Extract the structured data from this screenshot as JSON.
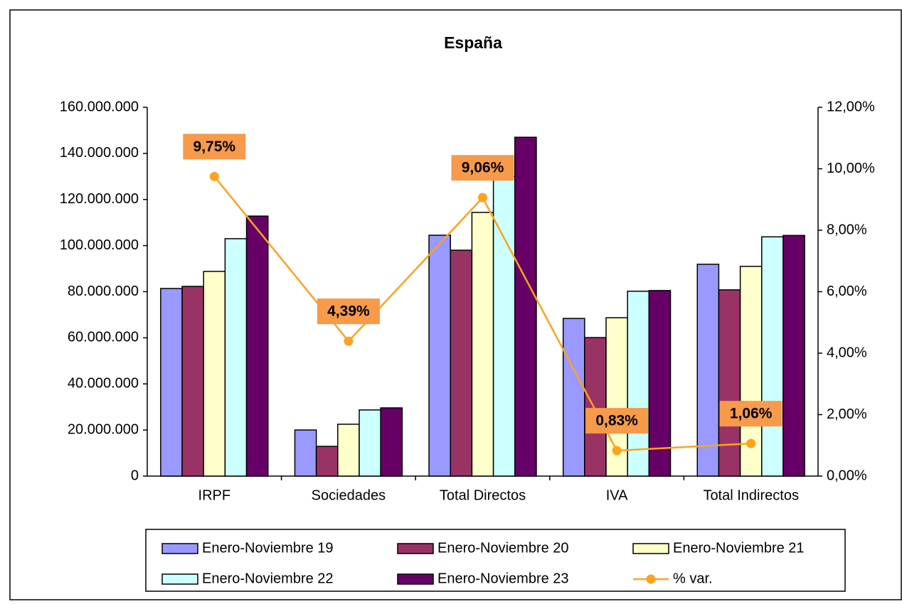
{
  "chart_data": {
    "type": "bar",
    "title": "España",
    "categories": [
      "IRPF",
      "Sociedades",
      "Total Directos",
      "IVA",
      "Total Indirectos"
    ],
    "series": [
      {
        "name": "Enero-Noviembre 19",
        "color": "#9999ff",
        "values": [
          81400000,
          20000000,
          104500000,
          68400000,
          91900000
        ]
      },
      {
        "name": "Enero-Noviembre 20",
        "color": "#993366",
        "values": [
          82300000,
          12900000,
          98000000,
          60100000,
          80800000
        ]
      },
      {
        "name": "Enero-Noviembre 21",
        "color": "#ffffcc",
        "values": [
          88800000,
          22500000,
          114400000,
          68700000,
          91000000
        ]
      },
      {
        "name": "Enero-Noviembre 22",
        "color": "#ccffff",
        "values": [
          103000000,
          28700000,
          130000000,
          80200000,
          103800000
        ]
      },
      {
        "name": "Enero-Noviembre 23",
        "color": "#660066",
        "values": [
          112800000,
          29600000,
          147000000,
          80500000,
          104400000
        ]
      },
      {
        "name": "% var.",
        "type": "line",
        "axis": "y2",
        "color": "#ffa21d",
        "values": [
          9.75,
          4.39,
          9.06,
          0.83,
          1.06
        ],
        "value_labels": [
          "9,75%",
          "4,39%",
          "9,06%",
          "0,83%",
          "1,06%"
        ],
        "label_color": "#f79a4a"
      }
    ],
    "ylim": [
      0,
      160000000
    ],
    "yticks": [
      0,
      {
        "value": 20000000,
        "label": "20.000.000"
      },
      {
        "value": 40000000,
        "label": "40.000.000"
      },
      {
        "value": 60000000,
        "label": "60.000.000"
      },
      {
        "value": 80000000,
        "label": "80.000.000"
      },
      {
        "value": 100000000,
        "label": "100.000.000"
      },
      {
        "value": 120000000,
        "label": "120.000.000"
      },
      {
        "value": 140000000,
        "label": "140.000.000"
      },
      {
        "value": 160000000,
        "label": "160.000.000"
      }
    ],
    "y2lim": [
      0,
      12
    ],
    "y2ticks": [
      {
        "value": 0,
        "label": "0,00%"
      },
      {
        "value": 2,
        "label": "2,00%"
      },
      {
        "value": 4,
        "label": "4,00%"
      },
      {
        "value": 6,
        "label": "6,00%"
      },
      {
        "value": 8,
        "label": "8,00%"
      },
      {
        "value": 10,
        "label": "10,00%"
      },
      {
        "value": 12,
        "label": "12,00%"
      }
    ],
    "grid": false,
    "legend": "bottom"
  }
}
